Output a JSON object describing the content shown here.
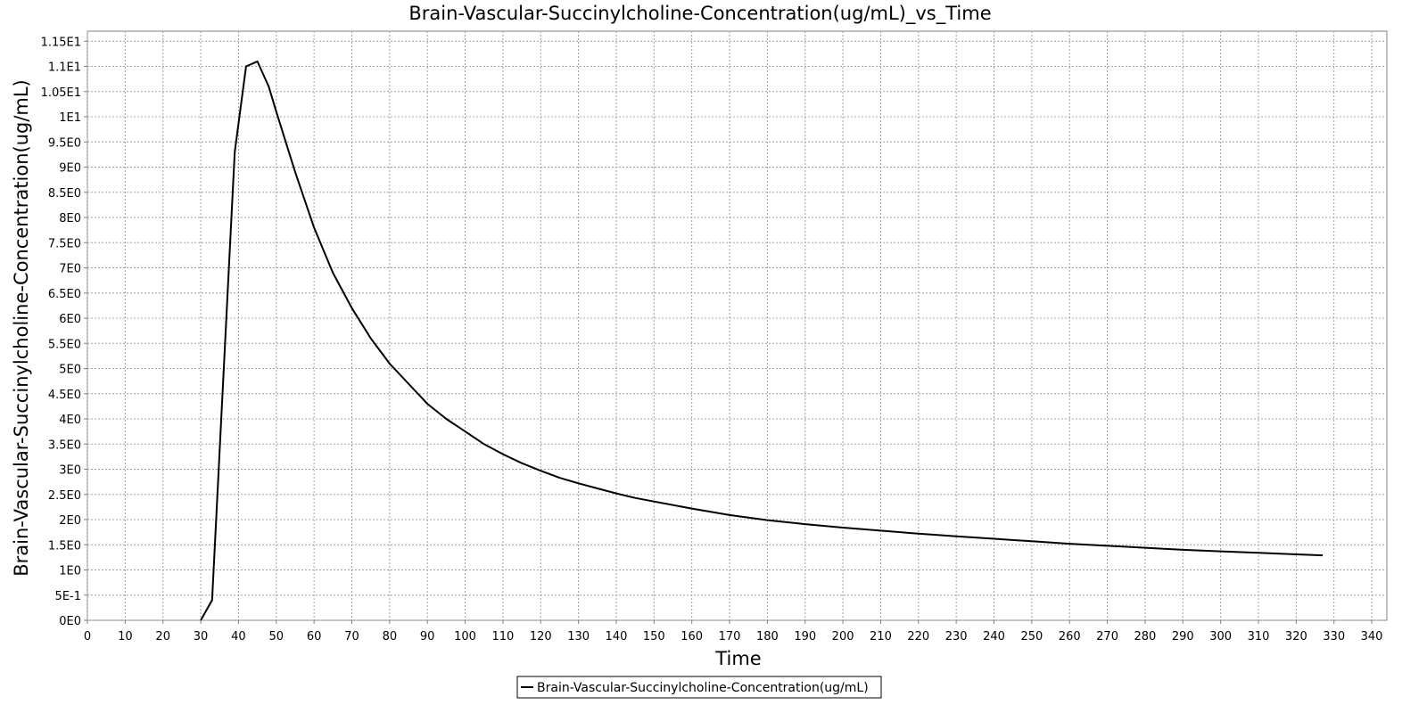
{
  "chart_data": {
    "type": "line",
    "title": "Brain-Vascular-Succinylcholine-Concentration(ug/mL)_vs_Time",
    "xlabel": "Time",
    "ylabel": "Brain-Vascular-Succinylcholine-Concentration(ug/mL)",
    "xlim": [
      0,
      344
    ],
    "ylim": [
      0,
      11.7
    ],
    "x_ticks": [
      0,
      10,
      20,
      30,
      40,
      50,
      60,
      70,
      80,
      90,
      100,
      110,
      120,
      130,
      140,
      150,
      160,
      170,
      180,
      190,
      200,
      210,
      220,
      230,
      240,
      250,
      260,
      270,
      280,
      290,
      300,
      310,
      320,
      330,
      340
    ],
    "y_ticks": [
      {
        "value": 0,
        "label": "0E0"
      },
      {
        "value": 0.5,
        "label": "5E-1"
      },
      {
        "value": 1.0,
        "label": "1E0"
      },
      {
        "value": 1.5,
        "label": "1.5E0"
      },
      {
        "value": 2.0,
        "label": "2E0"
      },
      {
        "value": 2.5,
        "label": "2.5E0"
      },
      {
        "value": 3.0,
        "label": "3E0"
      },
      {
        "value": 3.5,
        "label": "3.5E0"
      },
      {
        "value": 4.0,
        "label": "4E0"
      },
      {
        "value": 4.5,
        "label": "4.5E0"
      },
      {
        "value": 5.0,
        "label": "5E0"
      },
      {
        "value": 5.5,
        "label": "5.5E0"
      },
      {
        "value": 6.0,
        "label": "6E0"
      },
      {
        "value": 6.5,
        "label": "6.5E0"
      },
      {
        "value": 7.0,
        "label": "7E0"
      },
      {
        "value": 7.5,
        "label": "7.5E0"
      },
      {
        "value": 8.0,
        "label": "8E0"
      },
      {
        "value": 8.5,
        "label": "8.5E0"
      },
      {
        "value": 9.0,
        "label": "9E0"
      },
      {
        "value": 9.5,
        "label": "9.5E0"
      },
      {
        "value": 10.0,
        "label": "1E1"
      },
      {
        "value": 10.5,
        "label": "1.05E1"
      },
      {
        "value": 11.0,
        "label": "1.1E1"
      },
      {
        "value": 11.5,
        "label": "1.15E1"
      }
    ],
    "grid": true,
    "legend_position": "bottom-center",
    "series": [
      {
        "name": "Brain-Vascular-Succinylcholine-Concentration(ug/mL)",
        "color": "#000000",
        "x": [
          30,
          33,
          39,
          42,
          45,
          48,
          50,
          55,
          60,
          65,
          70,
          75,
          80,
          85,
          90,
          95,
          100,
          105,
          110,
          115,
          120,
          125,
          130,
          135,
          140,
          145,
          150,
          160,
          170,
          180,
          190,
          200,
          210,
          220,
          230,
          240,
          250,
          260,
          270,
          280,
          290,
          300,
          310,
          320,
          327
        ],
        "y": [
          0,
          0.4,
          9.3,
          11.0,
          11.1,
          10.6,
          10.1,
          8.9,
          7.8,
          6.9,
          6.2,
          5.6,
          5.1,
          4.7,
          4.3,
          4.0,
          3.75,
          3.5,
          3.3,
          3.12,
          2.97,
          2.83,
          2.72,
          2.62,
          2.52,
          2.43,
          2.36,
          2.22,
          2.09,
          1.99,
          1.91,
          1.84,
          1.78,
          1.72,
          1.67,
          1.62,
          1.57,
          1.52,
          1.48,
          1.44,
          1.4,
          1.37,
          1.34,
          1.31,
          1.29
        ]
      }
    ]
  }
}
